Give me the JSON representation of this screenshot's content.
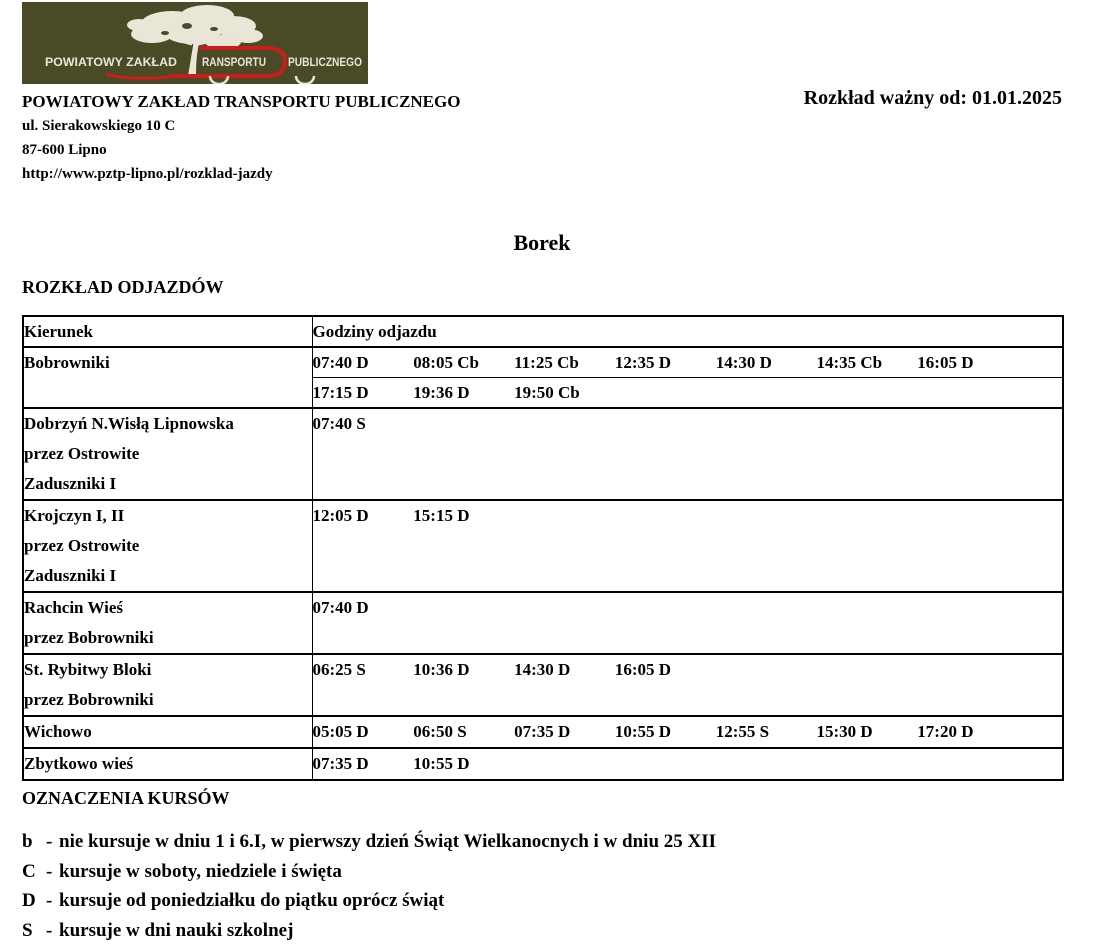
{
  "logo": {
    "colors": {
      "olive": "#4a4a27",
      "cream": "#e9e5d7",
      "red": "#cc1c1c"
    },
    "text_part1": "POWIATOWY ZAKŁAD",
    "text_part2": "RANSPORTU",
    "text_part3": "PUBLICZNEGO"
  },
  "header": {
    "company": "POWIATOWY ZAKŁAD TRANSPORTU PUBLICZNEGO",
    "address_line1": "ul. Sierakowskiego 10 C",
    "address_line2": "87-600 Lipno",
    "website": "http://www.pztp-lipno.pl/rozklad-jazdy",
    "valid_from": "Rozkład ważny od: 01.01.2025"
  },
  "title": "Borek",
  "schedule": {
    "heading": "ROZKŁAD ODJAZDÓW",
    "col_direction": "Kierunek",
    "col_times": "Godziny odjazdu",
    "rows": [
      {
        "direction": [
          "Bobrowniki"
        ],
        "time_lines": [
          [
            "07:40 D",
            "08:05 Cb",
            "11:25 Cb",
            "12:35 D",
            "14:30 D",
            "14:35 Cb",
            "16:05 D"
          ],
          [
            "17:15 D",
            "19:36 D",
            "19:50 Cb"
          ]
        ]
      },
      {
        "direction": [
          "Dobrzyń N.Wisłą Lipnowska",
          "przez Ostrowite",
          "Zaduszniki I"
        ],
        "time_lines": [
          [
            "07:40 S"
          ]
        ]
      },
      {
        "direction": [
          "Krojczyn I, II",
          "przez Ostrowite",
          "Zaduszniki I"
        ],
        "time_lines": [
          [
            "12:05 D",
            "15:15 D"
          ]
        ]
      },
      {
        "direction": [
          "Rachcin Wieś",
          "przez Bobrowniki"
        ],
        "time_lines": [
          [
            "07:40 D"
          ]
        ]
      },
      {
        "direction": [
          "St. Rybitwy Bloki",
          "przez Bobrowniki"
        ],
        "time_lines": [
          [
            "06:25 S",
            "10:36 D",
            "14:30 D",
            "16:05 D"
          ]
        ]
      },
      {
        "direction": [
          "Wichowo"
        ],
        "time_lines": [
          [
            "05:05 D",
            "06:50 S",
            "07:35 D",
            "10:55 D",
            "12:55 S",
            "15:30 D",
            "17:20 D"
          ]
        ]
      },
      {
        "direction": [
          "Zbytkowo wieś"
        ],
        "time_lines": [
          [
            "07:35 D",
            "10:55 D"
          ]
        ]
      }
    ]
  },
  "legend": {
    "heading": "OZNACZENIA KURSÓW",
    "separator": "-",
    "items": [
      {
        "symbol": "b",
        "description": "nie kursuje w dniu 1 i 6.I, w pierwszy dzień Świąt Wielkanocnych i w dniu 25 XII"
      },
      {
        "symbol": "C",
        "description": "kursuje w soboty, niedziele i święta"
      },
      {
        "symbol": "D",
        "description": "kursuje od poniedziałku do piątku oprócz świąt"
      },
      {
        "symbol": "S",
        "description": "kursuje w dni nauki szkolnej"
      }
    ]
  }
}
